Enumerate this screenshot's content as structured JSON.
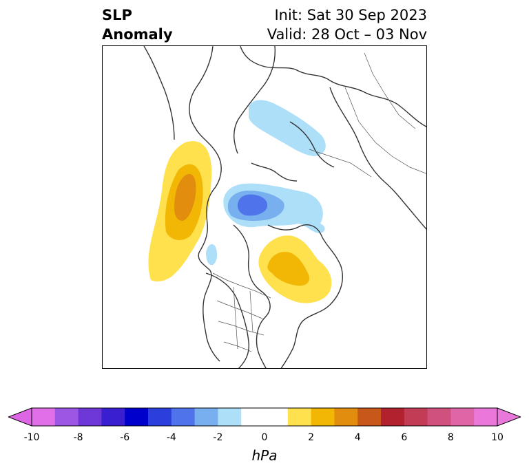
{
  "header": {
    "title_line1": "SLP",
    "title_line2": "Anomaly",
    "init": "Init: Sat 30 Sep 2023",
    "valid": "Valid: 28 Oct – 03 Nov"
  },
  "map": {
    "projection": "north-polar-stereographic",
    "coastline_color": "#333333",
    "anomaly_features": [
      {
        "name": "positive-anomaly-west-north-america",
        "sign": "positive",
        "peak_hpa": 4
      },
      {
        "name": "positive-anomaly-eastern-canada",
        "sign": "positive",
        "peak_hpa": 3
      },
      {
        "name": "negative-anomaly-eastern-siberia",
        "sign": "negative",
        "peak_hpa": -2
      },
      {
        "name": "negative-anomaly-arctic-ocean",
        "sign": "negative",
        "peak_hpa": -5
      },
      {
        "name": "negative-anomaly-pacific-northwest",
        "sign": "negative",
        "peak_hpa": -1
      }
    ]
  },
  "colorbar": {
    "label": "hPa",
    "min": -10,
    "max": 10,
    "extend": "both",
    "ticks": [
      "-10",
      "-8",
      "-6",
      "-4",
      "-2",
      "0",
      "2",
      "4",
      "6",
      "8",
      "10"
    ],
    "colors": [
      "#e06fe8",
      "#9d55e3",
      "#6e37d8",
      "#3a1fd0",
      "#0000cc",
      "#2a3fdc",
      "#4f73ea",
      "#78afef",
      "#addff9",
      "#ffffff",
      "#ffffff",
      "#ffe04d",
      "#f2b705",
      "#e28d0e",
      "#c8581a",
      "#b2222e",
      "#c23c55",
      "#d0507e",
      "#df65a6",
      "#ea78da"
    ],
    "lower_extend_color": "#dd66e4",
    "upper_extend_color": "#ea78da"
  }
}
